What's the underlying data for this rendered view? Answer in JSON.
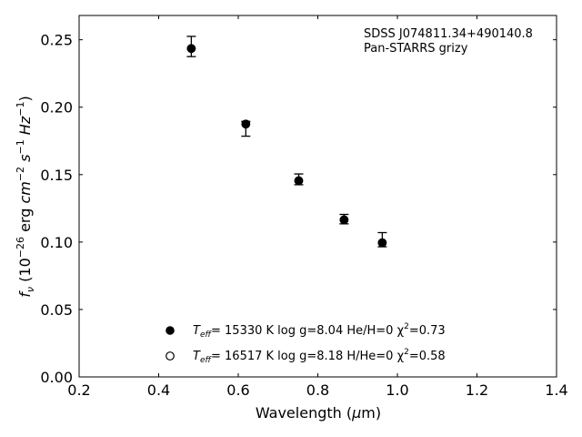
{
  "chart_data": {
    "type": "scatter",
    "annotation": [
      "SDSS J074811.34+490140.8",
      "Pan-STARRS grizy"
    ],
    "xlabel": "Wavelength (μm)",
    "ylabel": "f_ν (10^-26 erg cm^-2 s^-1 Hz^-1)",
    "xlim": [
      0.2,
      1.4
    ],
    "ylim": [
      0.0,
      0.268
    ],
    "x_ticks": [
      0.2,
      0.4,
      0.6,
      0.8,
      1.0,
      1.2,
      1.4
    ],
    "x_tick_labels": [
      "0.2",
      "0.4",
      "0.6",
      "0.8",
      "1.0",
      "1.2",
      "1.4"
    ],
    "y_ticks": [
      0.0,
      0.05,
      0.1,
      0.15,
      0.2,
      0.25
    ],
    "y_tick_labels": [
      "0.00",
      "0.05",
      "0.10",
      "0.15",
      "0.20",
      "0.25"
    ],
    "grid": false,
    "observed": {
      "x": [
        0.482,
        0.619,
        0.752,
        0.866,
        0.962
      ],
      "y": [
        0.2435,
        0.1875,
        0.1455,
        0.1165,
        0.0995
      ],
      "err_low": [
        0.006,
        0.009,
        0.003,
        0.003,
        0.003
      ],
      "err_high": [
        0.009,
        0.002,
        0.005,
        0.004,
        0.0075
      ]
    },
    "series": [
      {
        "marker": "filled-circle",
        "label": "T_eff= 15330 K  log g=8.04  He/H=0  χ²=0.73",
        "x": [
          0.482,
          0.619,
          0.752,
          0.866,
          0.962
        ],
        "y": [
          0.2435,
          0.1875,
          0.1455,
          0.1165,
          0.0995
        ]
      },
      {
        "marker": "open-circle",
        "label": "T_eff= 16517 K  log g=8.18  H/He=0  χ²=0.58",
        "x": [
          0.482,
          0.619,
          0.752,
          0.866,
          0.962
        ],
        "y": [
          0.2435,
          0.1875,
          0.1455,
          0.1165,
          0.0995
        ]
      }
    ],
    "legend_text": [
      {
        "t_sym": "T",
        "t_sub": "eff",
        "rest": "= 15330 K  log g=8.04  He/H=0  χ",
        "chi_sup": "2",
        "chi_val": "=0.73"
      },
      {
        "t_sym": "T",
        "t_sub": "eff",
        "rest": "= 16517 K  log g=8.18  H/He=0  χ",
        "chi_sup": "2",
        "chi_val": "=0.58"
      }
    ],
    "legend_position": "lower-center"
  }
}
